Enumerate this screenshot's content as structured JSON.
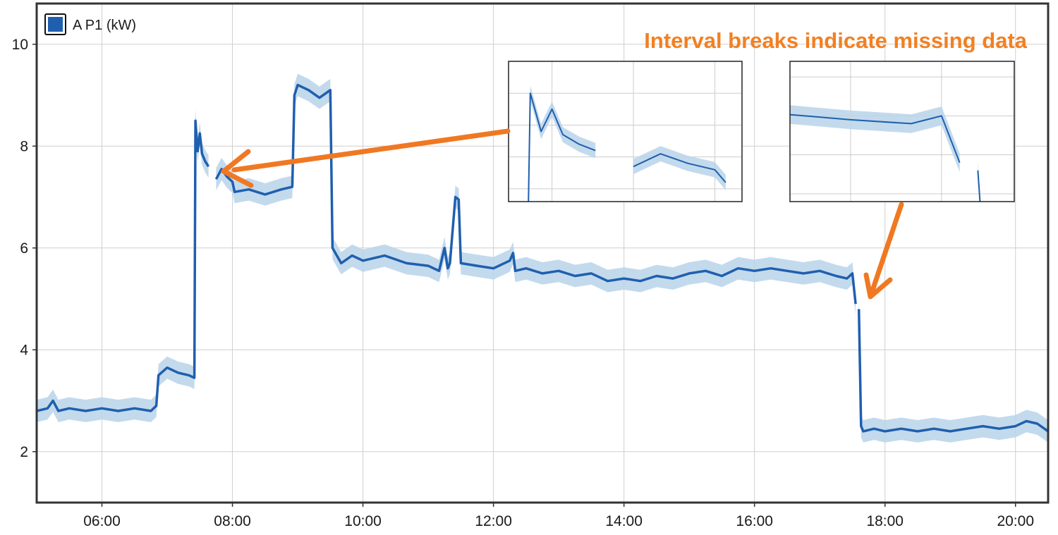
{
  "chart_data": {
    "type": "line",
    "title": "",
    "xlabel": "",
    "ylabel": "",
    "x_ticks": [
      "06:00",
      "08:00",
      "10:00",
      "12:00",
      "14:00",
      "16:00",
      "18:00",
      "20:00"
    ],
    "y_ticks": [
      "2",
      "4",
      "6",
      "8",
      "10"
    ],
    "xlim": [
      "05:00",
      "20:30"
    ],
    "ylim": [
      1,
      10.8
    ],
    "grid": true,
    "legend": {
      "placement": "top-left",
      "entries": [
        {
          "label": "A P1 (kW)",
          "color": "#1f5fae"
        }
      ]
    },
    "series": [
      {
        "name": "A P1 (kW)",
        "color": "#1f5fae",
        "band_color": "#b9d4ea",
        "segments": [
          [
            [
              "05:00",
              2.8
            ],
            [
              "05:10",
              2.85
            ],
            [
              "05:15",
              3.0
            ],
            [
              "05:20",
              2.8
            ],
            [
              "05:30",
              2.85
            ],
            [
              "05:45",
              2.8
            ],
            [
              "06:00",
              2.85
            ],
            [
              "06:15",
              2.8
            ],
            [
              "06:30",
              2.85
            ],
            [
              "06:45",
              2.8
            ],
            [
              "06:50",
              2.9
            ],
            [
              "06:52",
              3.5
            ],
            [
              "07:00",
              3.65
            ],
            [
              "07:10",
              3.55
            ],
            [
              "07:20",
              3.5
            ],
            [
              "07:25",
              3.45
            ],
            [
              "07:26",
              8.5
            ],
            [
              "07:28",
              7.9
            ],
            [
              "07:30",
              8.25
            ],
            [
              "07:32",
              7.85
            ],
            [
              "07:35",
              7.7
            ],
            [
              "07:38",
              7.6
            ]
          ],
          [
            [
              "07:45",
              7.35
            ],
            [
              "07:50",
              7.55
            ],
            [
              "07:55",
              7.4
            ],
            [
              "08:00",
              7.3
            ],
            [
              "08:02",
              7.1
            ],
            [
              "08:15",
              7.15
            ],
            [
              "08:30",
              7.05
            ],
            [
              "08:45",
              7.15
            ],
            [
              "08:55",
              7.2
            ],
            [
              "08:57",
              9.0
            ],
            [
              "09:00",
              9.2
            ],
            [
              "09:10",
              9.1
            ],
            [
              "09:20",
              8.95
            ],
            [
              "09:30",
              9.1
            ],
            [
              "09:32",
              6.0
            ],
            [
              "09:40",
              5.7
            ],
            [
              "09:50",
              5.85
            ],
            [
              "10:00",
              5.75
            ],
            [
              "10:20",
              5.85
            ],
            [
              "10:40",
              5.7
            ],
            [
              "11:00",
              5.65
            ],
            [
              "11:10",
              5.55
            ],
            [
              "11:15",
              6.0
            ],
            [
              "11:18",
              5.6
            ],
            [
              "11:20",
              5.7
            ],
            [
              "11:25",
              7.0
            ],
            [
              "11:28",
              6.95
            ],
            [
              "11:30",
              5.7
            ],
            [
              "11:45",
              5.65
            ],
            [
              "12:00",
              5.6
            ],
            [
              "12:15",
              5.75
            ],
            [
              "12:18",
              5.9
            ],
            [
              "12:20",
              5.55
            ],
            [
              "12:30",
              5.6
            ],
            [
              "12:45",
              5.5
            ],
            [
              "13:00",
              5.55
            ],
            [
              "13:15",
              5.45
            ],
            [
              "13:30",
              5.5
            ],
            [
              "13:45",
              5.35
            ],
            [
              "14:00",
              5.4
            ],
            [
              "14:15",
              5.35
            ],
            [
              "14:30",
              5.45
            ],
            [
              "14:45",
              5.4
            ],
            [
              "15:00",
              5.5
            ],
            [
              "15:15",
              5.55
            ],
            [
              "15:30",
              5.45
            ],
            [
              "15:45",
              5.6
            ],
            [
              "16:00",
              5.55
            ],
            [
              "16:15",
              5.6
            ],
            [
              "16:30",
              5.55
            ],
            [
              "16:45",
              5.5
            ],
            [
              "17:00",
              5.55
            ],
            [
              "17:15",
              5.45
            ],
            [
              "17:25",
              5.4
            ],
            [
              "17:30",
              5.5
            ],
            [
              "17:33",
              4.9
            ]
          ],
          [
            [
              "17:36",
              4.8
            ],
            [
              "17:38",
              2.5
            ],
            [
              "17:40",
              2.4
            ],
            [
              "17:50",
              2.45
            ],
            [
              "18:00",
              2.4
            ],
            [
              "18:15",
              2.45
            ],
            [
              "18:30",
              2.4
            ],
            [
              "18:45",
              2.45
            ],
            [
              "19:00",
              2.4
            ],
            [
              "19:15",
              2.45
            ],
            [
              "19:30",
              2.5
            ],
            [
              "19:45",
              2.45
            ],
            [
              "20:00",
              2.5
            ],
            [
              "20:10",
              2.6
            ],
            [
              "20:20",
              2.55
            ],
            [
              "20:30",
              2.4
            ]
          ]
        ]
      }
    ],
    "annotations": [
      {
        "text": "Interval breaks indicate missing data",
        "color": "#f28023"
      }
    ]
  }
}
